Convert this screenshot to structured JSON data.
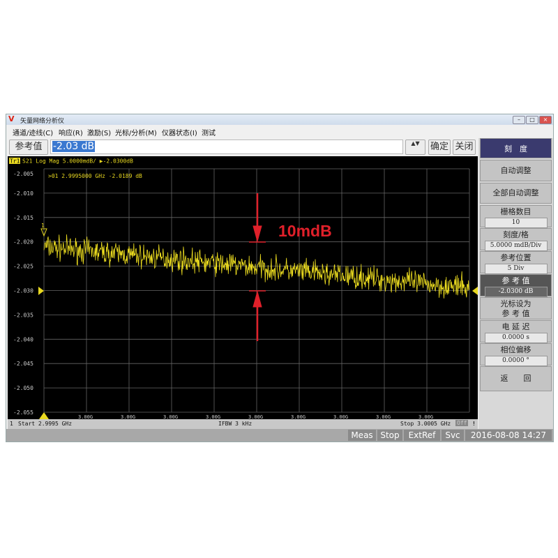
{
  "window": {
    "title": "矢量网络分析仪",
    "logo": "V",
    "controls": [
      "–",
      "□",
      "×"
    ]
  },
  "menu": [
    "通道/迹线(C)",
    "响应(R)",
    "激励(S)",
    "光标/分析(M)",
    "仪器状态(I)",
    "测试"
  ],
  "toolbar": {
    "label": "参考值",
    "value": "-2.03 dB",
    "ok": "确定",
    "close": "关闭",
    "spin": "▲▼"
  },
  "trace_header": {
    "id": "Tr1",
    "text": "S21 Log Mag 5.0000mdB/ ▶-2.0300dB"
  },
  "marker": {
    "readout": ">01  2.9995000 GHz -2.0189 dB",
    "number": "1"
  },
  "annotation": {
    "text": "10mdB",
    "color": "#e0202a"
  },
  "chart_data": {
    "type": "line",
    "y_ticks": [
      "-2.005",
      "-2.010",
      "-2.015",
      "-2.020",
      "-2.025",
      "-2.030",
      "-2.035",
      "-2.040",
      "-2.045",
      "-2.050",
      "-2.055"
    ],
    "x_ticks": [
      "3.00G",
      "3.00G",
      "3.00G",
      "3.00G",
      "3.00G",
      "3.00G",
      "3.00G",
      "3.00G",
      "3.00G"
    ],
    "ylim": [
      -2.055,
      -2.005
    ],
    "xlim_ghz": [
      2.9995,
      3.0005
    ],
    "grid": true,
    "trace_color": "#f0e020",
    "series": [
      {
        "trend_start": -2.021,
        "trend_end": -2.0295,
        "noise_pp": 0.004
      }
    ]
  },
  "status": {
    "channel": "1",
    "start": "Start 2.9995 GHz",
    "ifbw": "IFBW 3 kHz",
    "stop": "Stop 3.0005 GHz",
    "off": "Off",
    "warn": "!"
  },
  "bottom": [
    "Meas",
    "Stop",
    "ExtRef",
    "Svc",
    "2016-08-08 14:27"
  ],
  "panel": {
    "title": "刻　度",
    "items": [
      {
        "label": "自动调整"
      },
      {
        "label": "全部自动调整"
      },
      {
        "label": "栅格数目",
        "value": "10"
      },
      {
        "label": "刻度/格",
        "value": "5.0000 mdB/Div"
      },
      {
        "label": "参考位置",
        "value": "5 Div"
      },
      {
        "label": "参 考 值",
        "value": "-2.0300 dB"
      },
      {
        "label": "光标设为",
        "label2": "参 考 值"
      },
      {
        "label": "电 延 迟",
        "value": "0.0000 s"
      },
      {
        "label": "相位偏移",
        "value": "0.0000 °"
      },
      {
        "label": "返　　回"
      }
    ]
  }
}
